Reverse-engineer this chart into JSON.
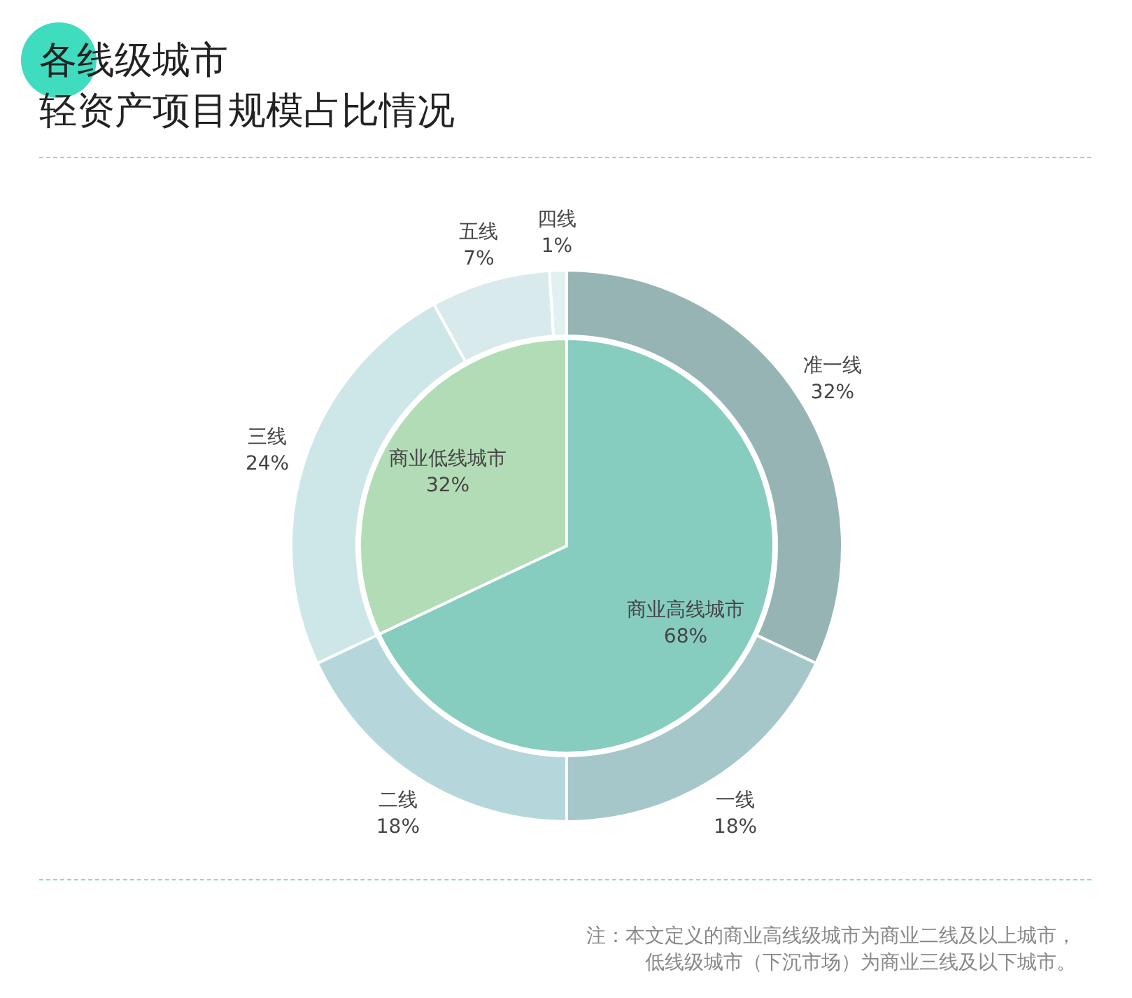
{
  "chart_data": [
    {
      "type": "pie",
      "title": "各线级城市",
      "subtitle": "轻资产项目规模占比情况",
      "categories": [
        "商业高线城市",
        "商业低线城市"
      ],
      "values": [
        68,
        32
      ],
      "colors": [
        "#86cdbf",
        "#b2dcb5"
      ],
      "value_labels": [
        "68%",
        "32%"
      ]
    },
    {
      "type": "donut",
      "categories": [
        "准一线",
        "一线",
        "二线",
        "三线",
        "五线",
        "四线"
      ],
      "values": [
        32,
        18,
        18,
        24,
        7,
        1
      ],
      "colors": [
        "#97b4b5",
        "#a6c7ca",
        "#b5d7dc",
        "#cde6e8",
        "#d8eaec",
        "#e2f0f1"
      ],
      "value_labels": [
        "32%",
        "18%",
        "18%",
        "24%",
        "7%",
        "1%"
      ],
      "annotations": [
        "注：本文定义的商业高线级城市为商业二线及以上城市，",
        "低线级城市（下沉市场）为商业三线及以下城市。"
      ]
    }
  ]
}
